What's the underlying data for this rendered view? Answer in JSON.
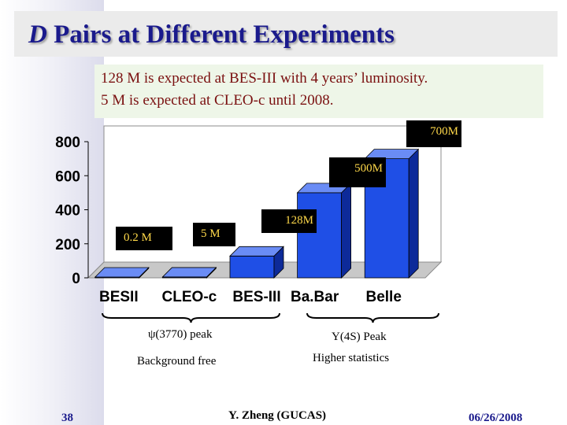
{
  "slide": {
    "title_italic": "D",
    "title_rest": " Pairs at Different Experiments",
    "note_lines": [
      "128 M is expected at BES-III with 4 years’ luminosity.",
      " 5 M is expected at CLEO-c until 2008."
    ],
    "group_labels": [
      {
        "line1": "ψ(3770) peak",
        "line2": "Background free"
      },
      {
        "line1": "Υ(4S) Peak",
        "line2": "Higher statistics"
      }
    ],
    "page_number": "38",
    "author": "Y. Zheng (GUCAS)",
    "date": "06/26/2008"
  },
  "colors": {
    "title": "#1a1a8c",
    "bar_front": "#1f4fe6",
    "bar_side": "#0d2a99",
    "bar_top": "#6a8cf5",
    "label_bg": "#000000",
    "label_text": "#ffd94a",
    "note_text": "#7a1010"
  },
  "chart_data": {
    "type": "bar",
    "categories": [
      "BESII",
      "CLEO-c",
      "BES-III",
      "Ba.Bar",
      "Belle"
    ],
    "values": [
      0.2,
      5,
      128,
      500,
      700
    ],
    "data_labels": [
      "0.2 M",
      "5 M",
      "128M",
      "500M",
      "700M"
    ],
    "yticks": [
      "0",
      "200",
      "400",
      "600",
      "800"
    ],
    "ylim": [
      0,
      800
    ],
    "style": "3d",
    "grid": false,
    "legend": "none"
  }
}
